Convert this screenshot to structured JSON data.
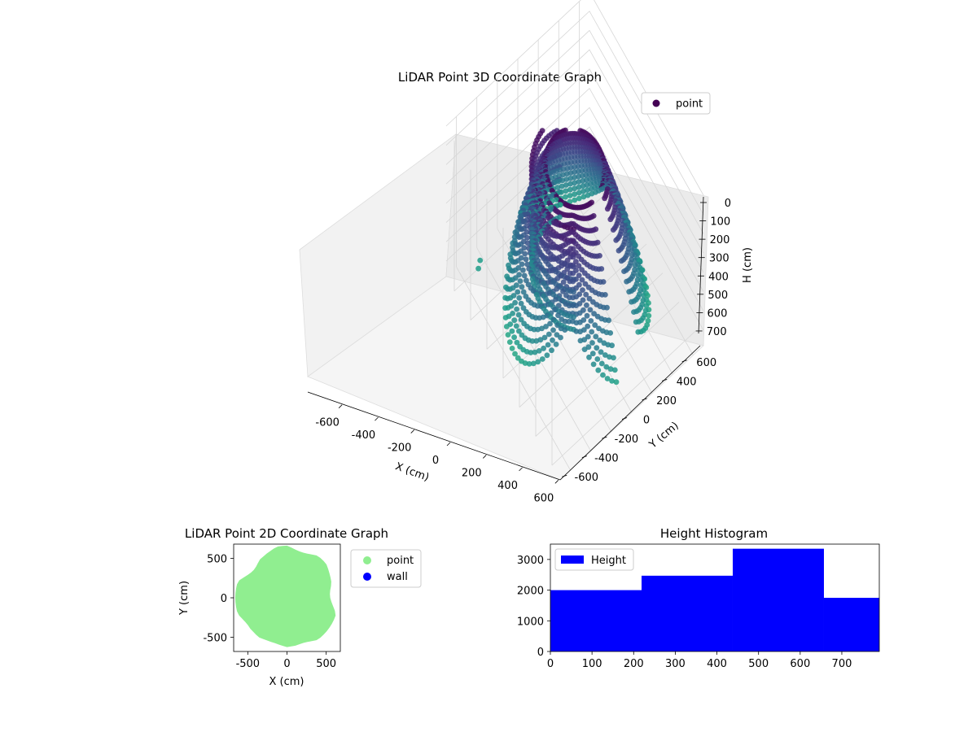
{
  "chart_data": [
    {
      "type": "scatter3d",
      "title": "LiDAR Point 3D Coordinate Graph",
      "xlabel": "X (cm)",
      "ylabel": "Y (cm)",
      "zlabel": "H (cm)",
      "xticks": [
        -600,
        -400,
        -200,
        0,
        200,
        400,
        600
      ],
      "yticks": [
        -600,
        -400,
        -200,
        0,
        200,
        400,
        600
      ],
      "zticks": [
        0,
        100,
        200,
        300,
        400,
        500,
        600,
        700
      ],
      "xlim": [
        -700,
        700
      ],
      "ylim": [
        -700,
        700
      ],
      "zlim": [
        0,
        780
      ],
      "z_inverted": true,
      "grid": true,
      "legend": {
        "placement": "upper-right",
        "entries": [
          {
            "name": "point",
            "color": "#440154"
          }
        ]
      },
      "colormap": "viridis",
      "shape": "dome of stacked scan arcs",
      "outlier_points": [
        {
          "x": -560,
          "y": -480,
          "h": 700
        },
        {
          "x": -530,
          "y": -520,
          "h": 700
        }
      ]
    },
    {
      "type": "scatter",
      "title": "LiDAR Point 2D Coordinate Graph",
      "xlabel": "X (cm)",
      "ylabel": "Y (cm)",
      "xticks": [
        -500,
        0,
        500
      ],
      "yticks": [
        -500,
        0,
        500
      ],
      "xlim": [
        -680,
        680
      ],
      "ylim": [
        -680,
        680
      ],
      "legend": {
        "placement": "outside-right",
        "entries": [
          {
            "name": "point",
            "color": "#90ee90"
          },
          {
            "name": "wall",
            "color": "#0000ff"
          }
        ]
      },
      "region_radius": 660
    },
    {
      "type": "bar",
      "title": "Height Histogram",
      "xticks": [
        0,
        100,
        200,
        300,
        400,
        500,
        600,
        700
      ],
      "yticks": [
        0,
        1000,
        2000,
        3000
      ],
      "xlim": [
        0,
        790
      ],
      "ylim": [
        0,
        3500
      ],
      "color": "#0000ff",
      "legend": {
        "placement": "upper-left",
        "entries": [
          {
            "name": "Height",
            "color": "#0000ff"
          }
        ]
      },
      "bins": [
        {
          "start": 0,
          "end": 219,
          "count": 2000
        },
        {
          "start": 219,
          "end": 438,
          "count": 2470
        },
        {
          "start": 438,
          "end": 657,
          "count": 3350
        },
        {
          "start": 657,
          "end": 790,
          "count": 1750
        }
      ]
    }
  ]
}
